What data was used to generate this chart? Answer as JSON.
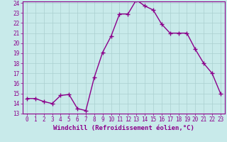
{
  "x": [
    0,
    1,
    2,
    3,
    4,
    5,
    6,
    7,
    8,
    9,
    10,
    11,
    12,
    13,
    14,
    15,
    16,
    17,
    18,
    19,
    20,
    21,
    22,
    23
  ],
  "y": [
    14.5,
    14.5,
    14.2,
    14.0,
    14.8,
    14.9,
    13.5,
    13.3,
    16.6,
    19.1,
    20.7,
    22.9,
    22.9,
    24.3,
    23.7,
    23.3,
    21.9,
    21.0,
    21.0,
    21.0,
    19.4,
    18.0,
    17.0,
    15.0
  ],
  "line_color": "#8B008B",
  "marker": "+",
  "marker_size": 4,
  "bg_color": "#c8eaea",
  "grid_color": "#aacfcf",
  "xlabel": "Windchill (Refroidissement éolien,°C)",
  "ylim": [
    13,
    24
  ],
  "xlim_min": -0.5,
  "xlim_max": 23.5,
  "yticks": [
    13,
    14,
    15,
    16,
    17,
    18,
    19,
    20,
    21,
    22,
    23,
    24
  ],
  "xticks": [
    0,
    1,
    2,
    3,
    4,
    5,
    6,
    7,
    8,
    9,
    10,
    11,
    12,
    13,
    14,
    15,
    16,
    17,
    18,
    19,
    20,
    21,
    22,
    23
  ],
  "tick_fontsize": 5.5,
  "xlabel_fontsize": 6.5,
  "line_width": 1.0,
  "spine_color": "#8B008B"
}
